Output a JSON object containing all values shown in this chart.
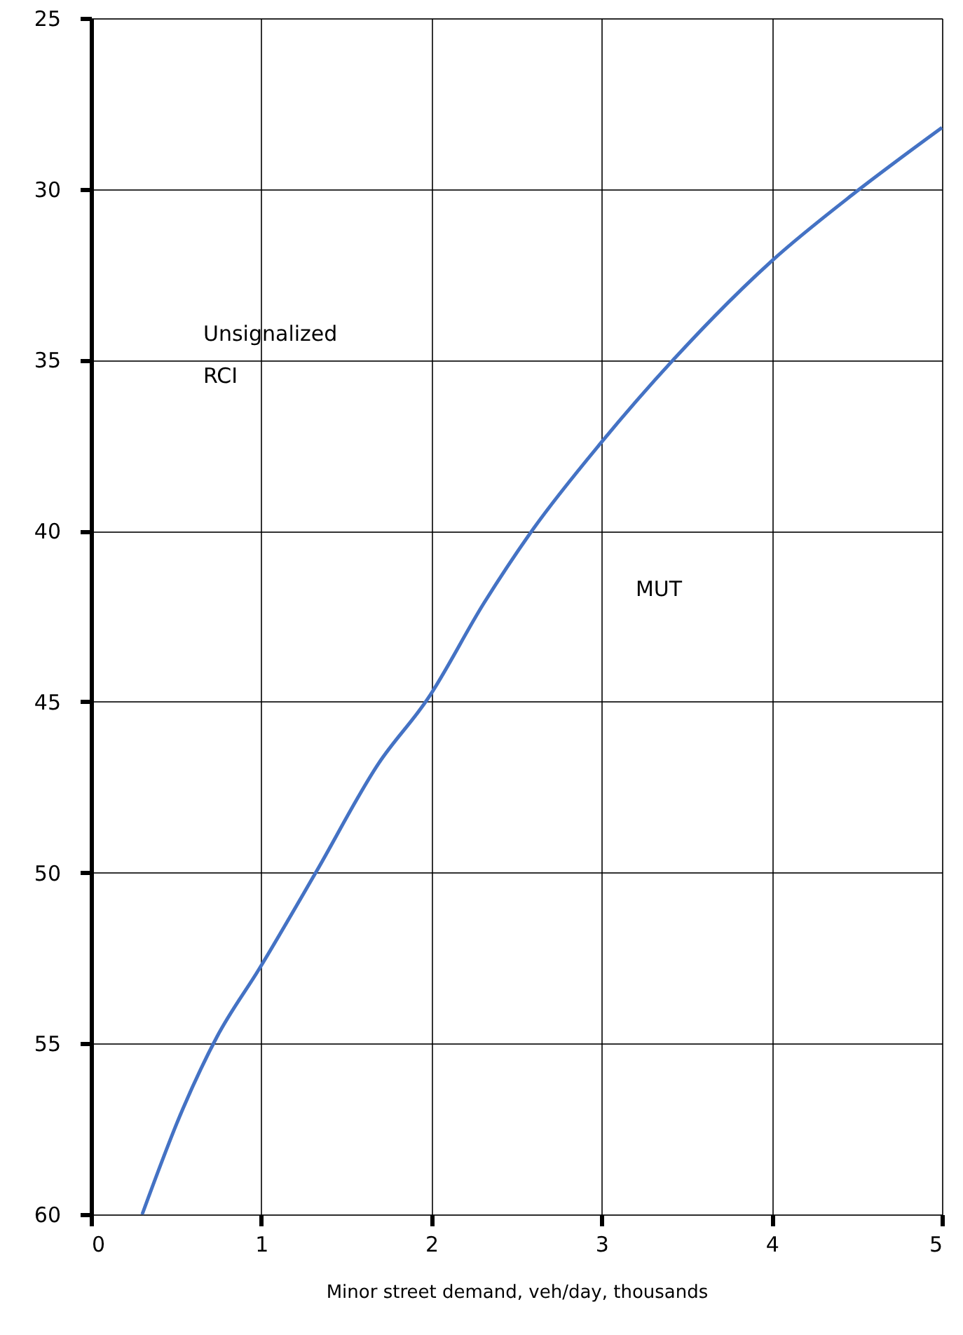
{
  "chart_data": {
    "type": "line",
    "xlabel": "Minor street demand, veh/day, thousands",
    "xlim": [
      0,
      5
    ],
    "xticks": [
      0,
      1,
      2,
      3,
      4,
      5
    ],
    "ylim": [
      60,
      25
    ],
    "yticks": [
      25,
      30,
      35,
      40,
      45,
      50,
      55,
      60
    ],
    "grid": true,
    "line_style": "solid",
    "marker": "none",
    "series": [
      {
        "color": "#4472c4",
        "x": [
          0.3,
          0.54,
          0.74,
          0.99,
          1.32,
          1.69,
          1.98,
          2.31,
          2.59,
          3.0,
          3.42,
          4.0,
          4.49,
          5.0
        ],
        "values": [
          60,
          56.9,
          54.8,
          52.8,
          50,
          46.8,
          44.9,
          42.1,
          40,
          37.4,
          35.0,
          32.1,
          30.1,
          28.2
        ]
      }
    ],
    "annotations": [
      "Unsignalized\nRCI",
      "MUT"
    ]
  }
}
